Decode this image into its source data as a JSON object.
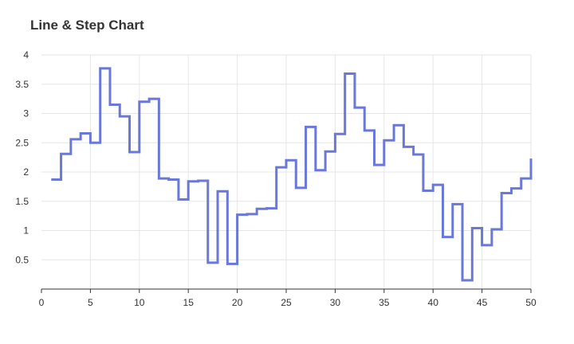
{
  "chart_data": {
    "type": "line",
    "subtype": "step",
    "title": "Line & Step Chart",
    "xlabel": "",
    "ylabel": "",
    "xlim": [
      0,
      50
    ],
    "ylim": [
      0,
      4
    ],
    "x_ticks": [
      0,
      5,
      10,
      15,
      20,
      25,
      30,
      35,
      40,
      45,
      50
    ],
    "y_ticks": [
      0.5,
      1,
      1.5,
      2,
      2.5,
      3,
      3.5,
      4
    ],
    "grid": true,
    "legend": "none",
    "series": [
      {
        "color": "#6a78d9",
        "x": [
          1,
          2,
          3,
          4,
          5,
          6,
          7,
          8,
          9,
          10,
          11,
          12,
          13,
          14,
          15,
          16,
          17,
          18,
          19,
          20,
          21,
          22,
          23,
          24,
          25,
          26,
          27,
          28,
          29,
          30,
          31,
          32,
          33,
          34,
          35,
          36,
          37,
          38,
          39,
          40,
          41,
          42,
          43,
          44,
          45,
          46,
          47,
          48,
          49,
          50
        ],
        "values": [
          1.87,
          2.31,
          2.56,
          2.66,
          2.5,
          3.77,
          3.15,
          2.95,
          2.34,
          3.2,
          3.25,
          1.89,
          1.87,
          1.53,
          1.84,
          1.85,
          0.45,
          1.67,
          0.43,
          1.27,
          1.28,
          1.37,
          1.38,
          2.08,
          2.2,
          1.73,
          2.77,
          2.03,
          2.35,
          2.65,
          3.68,
          3.1,
          2.71,
          2.12,
          2.54,
          2.8,
          2.43,
          2.3,
          1.68,
          1.78,
          0.89,
          1.45,
          0.15,
          1.04,
          0.75,
          1.02,
          1.64,
          1.72,
          1.89,
          2.23
        ]
      }
    ]
  }
}
